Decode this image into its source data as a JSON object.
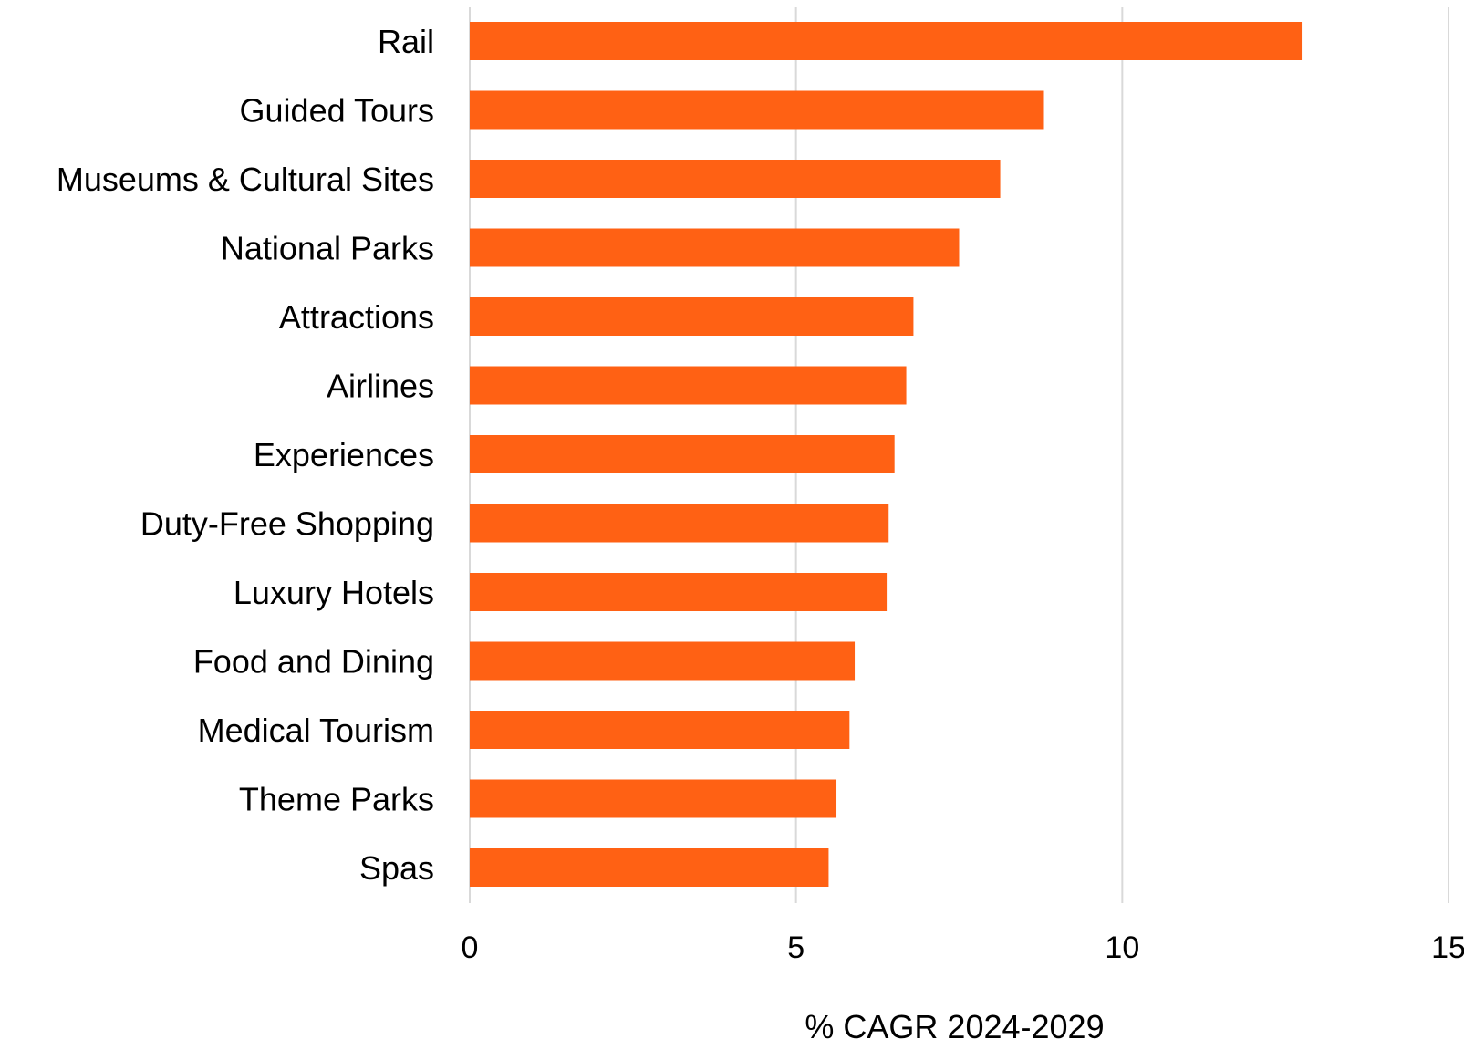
{
  "chart_data": {
    "type": "bar",
    "orientation": "horizontal",
    "categories": [
      "Rail",
      "Guided Tours",
      "Museums & Cultural Sites",
      "National Parks",
      "Attractions",
      "Airlines",
      "Experiences",
      "Duty-Free Shopping",
      "Luxury Hotels",
      "Food and Dining",
      "Medical Tourism",
      "Theme Parks",
      "Spas"
    ],
    "values": [
      12.75,
      8.8,
      8.13,
      7.5,
      6.8,
      6.69,
      6.51,
      6.42,
      6.39,
      5.9,
      5.82,
      5.62,
      5.5
    ],
    "xlabel": "% CAGR 2024-2029",
    "ylabel": "",
    "xlim": [
      0,
      15
    ],
    "xticks": [
      "0",
      "5",
      "10",
      "15"
    ],
    "grid": "vertical",
    "legend": "none",
    "bar_color": "#ff6114",
    "gridline_color": "#d9d9d9"
  }
}
